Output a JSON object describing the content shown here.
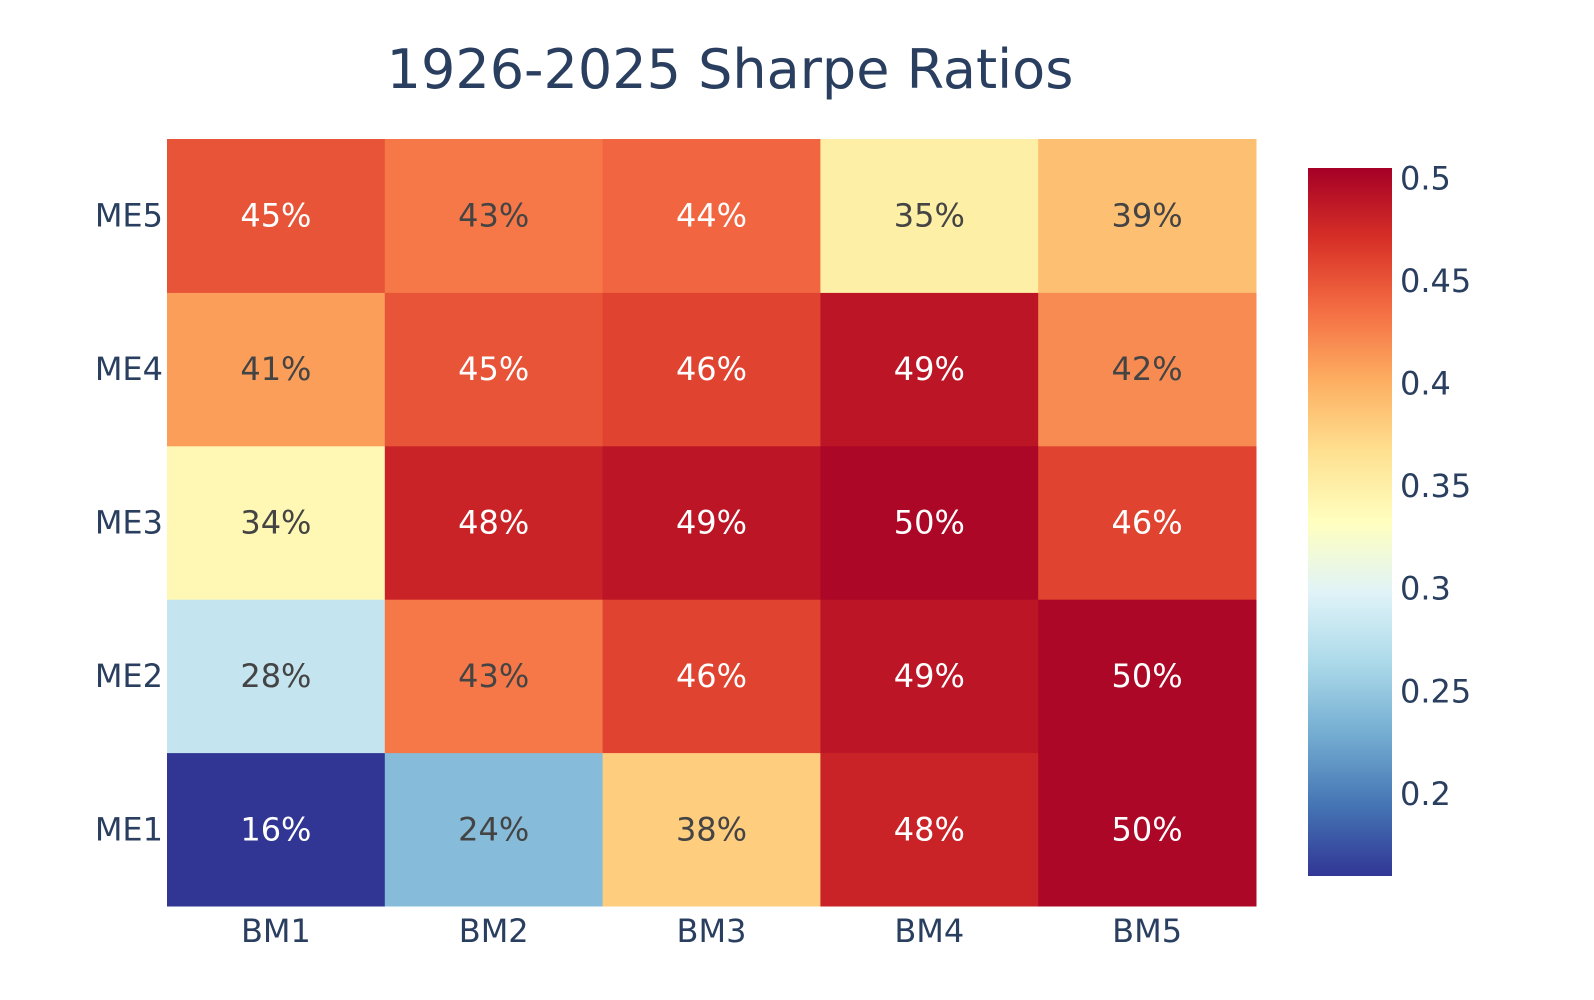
{
  "chart_data": {
    "type": "heatmap",
    "title": "1926-2025 Sharpe Ratios",
    "x": [
      "BM1",
      "BM2",
      "BM3",
      "BM4",
      "BM5"
    ],
    "y": [
      "ME1",
      "ME2",
      "ME3",
      "ME4",
      "ME5"
    ],
    "values": [
      [
        0.16,
        0.24,
        0.38,
        0.48,
        0.5
      ],
      [
        0.28,
        0.43,
        0.46,
        0.49,
        0.5
      ],
      [
        0.34,
        0.48,
        0.49,
        0.5,
        0.46
      ],
      [
        0.41,
        0.45,
        0.46,
        0.49,
        0.42
      ],
      [
        0.45,
        0.43,
        0.44,
        0.35,
        0.39
      ]
    ],
    "labels": [
      [
        "16%",
        "24%",
        "38%",
        "48%",
        "50%"
      ],
      [
        "28%",
        "43%",
        "46%",
        "49%",
        "50%"
      ],
      [
        "34%",
        "48%",
        "49%",
        "50%",
        "46%"
      ],
      [
        "41%",
        "45%",
        "46%",
        "49%",
        "42%"
      ],
      [
        "45%",
        "43%",
        "44%",
        "35%",
        "39%"
      ]
    ],
    "colorscale": "RdYlBu",
    "zlim": [
      0.16,
      0.505
    ],
    "colorbar_ticks": [
      "0.2",
      "0.25",
      "0.3",
      "0.35",
      "0.4",
      "0.45",
      "0.5"
    ],
    "colorbar_tick_values": [
      0.2,
      0.25,
      0.3,
      0.35,
      0.4,
      0.45,
      0.5
    ],
    "colorbar_position": "right",
    "text_colors": {
      "dark": "#444444",
      "light": "#ffffff"
    }
  }
}
